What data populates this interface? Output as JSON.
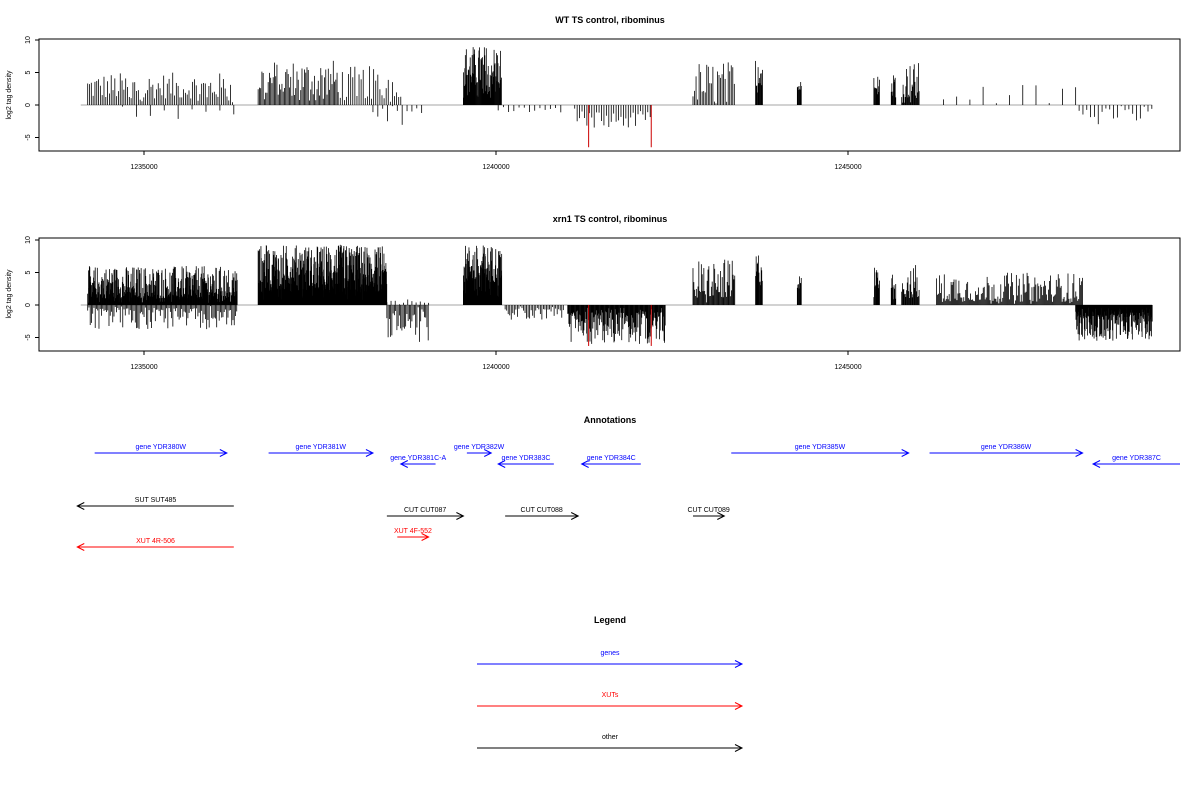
{
  "colors": {
    "genes": "#0000ff",
    "xuts": "#ff0000",
    "other": "#000000",
    "signal": "#000000",
    "highlight": "#cc0000",
    "baseline": "#888888"
  },
  "chart_data": [
    {
      "type": "bar",
      "title": "WT TS control, ribominus",
      "ylabel": "log2 tag density",
      "xlim": [
        1233300,
        1249700
      ],
      "ylim": [
        -7,
        10
      ],
      "xticks": [
        "1235000",
        "1240000",
        "1245000"
      ],
      "yticks": [
        "-5",
        "0",
        "5",
        "10"
      ],
      "grid": false,
      "segments": [
        {
          "from": 1234000,
          "to": 1236100,
          "sign": 1,
          "min": 1.0,
          "max": 5.0,
          "step": 26
        },
        {
          "from": 1234500,
          "to": 1236100,
          "sign": -1,
          "min": 0.6,
          "max": 2.3,
          "step": 200
        },
        {
          "from": 1236450,
          "to": 1237600,
          "sign": 1,
          "min": 1.5,
          "max": 7.0,
          "step": 18
        },
        {
          "from": 1237600,
          "to": 1238500,
          "sign": 1,
          "min": 1.0,
          "max": 6.0,
          "step": 30
        },
        {
          "from": 1238100,
          "to": 1238800,
          "sign": -1,
          "min": 0.5,
          "max": 3.8,
          "step": 70
        },
        {
          "from": 1239400,
          "to": 1239950,
          "sign": 1,
          "min": 3.0,
          "max": 9.2,
          "step": 7
        },
        {
          "from": 1239900,
          "to": 1240800,
          "sign": -1,
          "min": 0.3,
          "max": 1.2,
          "step": 75
        },
        {
          "from": 1241000,
          "to": 1242100,
          "sign": -1,
          "min": 1.0,
          "max": 3.5,
          "step": 35
        },
        {
          "from": 1242700,
          "to": 1243300,
          "sign": 1,
          "min": 0.5,
          "max": 6.8,
          "step": 22
        },
        {
          "from": 1243600,
          "to": 1243700,
          "sign": 1,
          "min": 3.0,
          "max": 9.2,
          "step": 9
        },
        {
          "from": 1244200,
          "to": 1244260,
          "sign": 1,
          "min": 2.0,
          "max": 3.8,
          "step": 8
        },
        {
          "from": 1245300,
          "to": 1245380,
          "sign": 1,
          "min": 2.5,
          "max": 6.2,
          "step": 8
        },
        {
          "from": 1245550,
          "to": 1245620,
          "sign": 1,
          "min": 2.0,
          "max": 5.2,
          "step": 8
        },
        {
          "from": 1245700,
          "to": 1245950,
          "sign": 1,
          "min": 1.0,
          "max": 6.6,
          "step": 10
        },
        {
          "from": 1246300,
          "to": 1248300,
          "sign": 1,
          "min": 0.5,
          "max": 3.3,
          "step": 190
        },
        {
          "from": 1248250,
          "to": 1249300,
          "sign": -1,
          "min": 0.5,
          "max": 3.2,
          "step": 55
        }
      ],
      "highlight_bars": [
        {
          "x": 1241200,
          "y": -6.5
        },
        {
          "x": 1242100,
          "y": -6.5
        }
      ]
    },
    {
      "type": "bar",
      "title": "xrn1 TS control, ribominus",
      "ylabel": "log2 tag density",
      "xlim": [
        1233300,
        1249700
      ],
      "ylim": [
        -7,
        10
      ],
      "xticks": [
        "1235000",
        "1240000",
        "1245000"
      ],
      "yticks": [
        "-5",
        "0",
        "5",
        "10"
      ],
      "grid": false,
      "segments": [
        {
          "from": 1234000,
          "to": 1236150,
          "sign": 1,
          "min": 1.0,
          "max": 6.0,
          "step": 6
        },
        {
          "from": 1234000,
          "to": 1236150,
          "sign": -1,
          "min": 0.5,
          "max": 3.8,
          "step": 18
        },
        {
          "from": 1236450,
          "to": 1238300,
          "sign": 1,
          "min": 2.0,
          "max": 9.3,
          "step": 4
        },
        {
          "from": 1238300,
          "to": 1238900,
          "sign": -1,
          "min": 1.0,
          "max": 5.8,
          "step": 18
        },
        {
          "from": 1238300,
          "to": 1238900,
          "sign": 1,
          "min": 0.3,
          "max": 1.3,
          "step": 60
        },
        {
          "from": 1239400,
          "to": 1239950,
          "sign": 1,
          "min": 3.5,
          "max": 9.3,
          "step": 5
        },
        {
          "from": 1240000,
          "to": 1240850,
          "sign": -1,
          "min": 0.5,
          "max": 2.3,
          "step": 22
        },
        {
          "from": 1240900,
          "to": 1242300,
          "sign": -1,
          "min": 1.0,
          "max": 6.0,
          "step": 8
        },
        {
          "from": 1242700,
          "to": 1243300,
          "sign": 1,
          "min": 1.0,
          "max": 7.0,
          "step": 12
        },
        {
          "from": 1243600,
          "to": 1243700,
          "sign": 1,
          "min": 3.0,
          "max": 8.3,
          "step": 8
        },
        {
          "from": 1244200,
          "to": 1244260,
          "sign": 1,
          "min": 2.5,
          "max": 4.6,
          "step": 8
        },
        {
          "from": 1245300,
          "to": 1245380,
          "sign": 1,
          "min": 2.5,
          "max": 6.2,
          "step": 8
        },
        {
          "from": 1245550,
          "to": 1245620,
          "sign": 1,
          "min": 2.5,
          "max": 4.8,
          "step": 8
        },
        {
          "from": 1245700,
          "to": 1245950,
          "sign": 1,
          "min": 1.0,
          "max": 6.3,
          "step": 10
        },
        {
          "from": 1246200,
          "to": 1248300,
          "sign": 1,
          "min": 0.5,
          "max": 5.0,
          "step": 14
        },
        {
          "from": 1248200,
          "to": 1249300,
          "sign": -1,
          "min": 1.0,
          "max": 5.5,
          "step": 5
        }
      ],
      "highlight_bars": [
        {
          "x": 1241200,
          "y": -6.3
        },
        {
          "x": 1242100,
          "y": -6.3
        }
      ]
    }
  ],
  "annotations": {
    "title": "Annotations",
    "features": [
      {
        "label": "gene YDR380W",
        "type": "gene",
        "start": 1234100,
        "end": 1236000,
        "strand": "+",
        "row": 0
      },
      {
        "label": "gene YDR381W",
        "type": "gene",
        "start": 1236600,
        "end": 1238100,
        "strand": "+",
        "row": 0
      },
      {
        "label": "gene YDR381C-A",
        "type": "gene",
        "start": 1238500,
        "end": 1239000,
        "strand": "-",
        "row": 1
      },
      {
        "label": "gene YDR382W",
        "type": "gene",
        "start": 1239450,
        "end": 1239800,
        "strand": "+",
        "row": 0
      },
      {
        "label": "gene YDR383C",
        "type": "gene",
        "start": 1239900,
        "end": 1240700,
        "strand": "-",
        "row": 1
      },
      {
        "label": "gene YDR384C",
        "type": "gene",
        "start": 1241100,
        "end": 1241950,
        "strand": "-",
        "row": 1
      },
      {
        "label": "gene YDR385W",
        "type": "gene",
        "start": 1243250,
        "end": 1245800,
        "strand": "+",
        "row": 0
      },
      {
        "label": "gene YDR386W",
        "type": "gene",
        "start": 1246100,
        "end": 1248300,
        "strand": "+",
        "row": 0
      },
      {
        "label": "gene YDR387C",
        "type": "gene",
        "start": 1248450,
        "end": 1249700,
        "strand": "-",
        "row": 1
      },
      {
        "label": "SUT SUT485",
        "type": "other",
        "start": 1233850,
        "end": 1236100,
        "strand": "-",
        "row": 2
      },
      {
        "label": "CUT CUT087",
        "type": "other",
        "start": 1238300,
        "end": 1239400,
        "strand": "+",
        "row": 3
      },
      {
        "label": "CUT CUT088",
        "type": "other",
        "start": 1240000,
        "end": 1241050,
        "strand": "+",
        "row": 3
      },
      {
        "label": "CUT CUT089",
        "type": "other",
        "start": 1242700,
        "end": 1243150,
        "strand": "+",
        "row": 3
      },
      {
        "label": "XUT 4R-506",
        "type": "xut",
        "start": 1233850,
        "end": 1236100,
        "strand": "-",
        "row": 5
      },
      {
        "label": "XUT 4F-552",
        "type": "xut",
        "start": 1238450,
        "end": 1238900,
        "strand": "+",
        "row": 4
      }
    ]
  },
  "legend": {
    "title": "Legend",
    "items": [
      {
        "label": "genes",
        "type": "gene"
      },
      {
        "label": "XUTs",
        "type": "xut"
      },
      {
        "label": "other",
        "type": "other"
      }
    ]
  }
}
